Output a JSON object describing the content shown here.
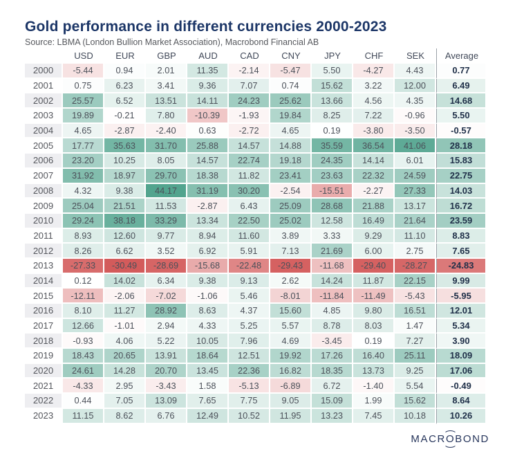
{
  "title": "Gold performance in different currencies 2000-2023",
  "source": "Source: LBMA (London Bullion Market Association), Macrobond Financial AB",
  "logo": {
    "pre": "MACR",
    "o": "O",
    "post": "BOND"
  },
  "brand_colors": {
    "title_navy": "#1c3667",
    "logo_navy": "#27365c",
    "year_stripe": "#eeeef1",
    "divider_gray": "#9aa0a7"
  },
  "chart_data": {
    "type": "heatmap",
    "title": "Gold performance in different currencies 2000-2023",
    "columns": [
      "USD",
      "EUR",
      "GBP",
      "AUD",
      "CAD",
      "CNY",
      "JPY",
      "CHF",
      "SEK"
    ],
    "average_label": "Average",
    "color_scale": {
      "positive_color": "#52a48e",
      "negative_color": "#d35b5b",
      "zero_color": "#ffffff",
      "positive_max": 44.17,
      "negative_max": -30.49
    },
    "rows": [
      {
        "year": "2000",
        "values": [
          -5.44,
          0.94,
          2.01,
          11.35,
          -2.14,
          -5.47,
          5.5,
          -4.27,
          4.43
        ],
        "average": 0.77
      },
      {
        "year": "2001",
        "values": [
          0.75,
          6.23,
          3.41,
          9.36,
          7.07,
          0.74,
          15.62,
          3.22,
          12.0
        ],
        "average": 6.49
      },
      {
        "year": "2002",
        "values": [
          25.57,
          6.52,
          13.51,
          14.11,
          24.23,
          25.62,
          13.66,
          4.56,
          4.35
        ],
        "average": 14.68
      },
      {
        "year": "2003",
        "values": [
          19.89,
          -0.21,
          7.8,
          -10.39,
          -1.93,
          19.84,
          8.25,
          7.22,
          -0.96
        ],
        "average": 5.5
      },
      {
        "year": "2004",
        "values": [
          4.65,
          -2.87,
          -2.4,
          0.63,
          -2.72,
          4.65,
          0.19,
          -3.8,
          -3.5
        ],
        "average": -0.57
      },
      {
        "year": "2005",
        "values": [
          17.77,
          35.63,
          31.7,
          25.88,
          14.57,
          14.88,
          35.59,
          36.54,
          41.06
        ],
        "average": 28.18
      },
      {
        "year": "2006",
        "values": [
          23.2,
          10.25,
          8.05,
          14.57,
          22.74,
          19.18,
          24.35,
          14.14,
          6.01
        ],
        "average": 15.83
      },
      {
        "year": "2007",
        "values": [
          31.92,
          18.97,
          29.7,
          18.38,
          11.82,
          23.41,
          23.63,
          22.32,
          24.59
        ],
        "average": 22.75
      },
      {
        "year": "2008",
        "values": [
          4.32,
          9.38,
          44.17,
          31.19,
          30.2,
          -2.54,
          -15.51,
          -2.27,
          27.33
        ],
        "average": 14.03
      },
      {
        "year": "2009",
        "values": [
          25.04,
          21.51,
          11.53,
          -2.87,
          6.43,
          25.09,
          28.68,
          21.88,
          13.17
        ],
        "average": 16.72
      },
      {
        "year": "2010",
        "values": [
          29.24,
          38.18,
          33.29,
          13.34,
          22.5,
          25.02,
          12.58,
          16.49,
          21.64
        ],
        "average": 23.59
      },
      {
        "year": "2011",
        "values": [
          8.93,
          12.6,
          9.77,
          8.94,
          11.6,
          3.89,
          3.33,
          9.29,
          11.1
        ],
        "average": 8.83
      },
      {
        "year": "2012",
        "values": [
          8.26,
          6.62,
          3.52,
          6.92,
          5.91,
          7.13,
          21.69,
          6.0,
          2.75
        ],
        "average": 7.65
      },
      {
        "year": "2013",
        "values": [
          -27.33,
          -30.49,
          -28.69,
          -15.68,
          -22.48,
          -29.43,
          -11.68,
          -29.4,
          -28.27
        ],
        "average": -24.83
      },
      {
        "year": "2014",
        "values": [
          0.12,
          14.02,
          6.34,
          9.38,
          9.13,
          2.62,
          14.24,
          11.87,
          22.15
        ],
        "average": 9.99
      },
      {
        "year": "2015",
        "values": [
          -12.11,
          -2.06,
          -7.02,
          -1.06,
          5.46,
          -8.01,
          -11.84,
          -11.49,
          -5.43
        ],
        "average": -5.95
      },
      {
        "year": "2016",
        "values": [
          8.1,
          11.27,
          28.92,
          8.63,
          4.37,
          15.6,
          4.85,
          9.8,
          16.51
        ],
        "average": 12.01
      },
      {
        "year": "2017",
        "values": [
          12.66,
          -1.01,
          2.94,
          4.33,
          5.25,
          5.57,
          8.78,
          8.03,
          1.47
        ],
        "average": 5.34
      },
      {
        "year": "2018",
        "values": [
          -0.93,
          4.06,
          5.22,
          10.05,
          7.96,
          4.69,
          -3.45,
          0.19,
          7.27
        ],
        "average": 3.9
      },
      {
        "year": "2019",
        "values": [
          18.43,
          20.65,
          13.91,
          18.64,
          12.51,
          19.92,
          17.26,
          16.4,
          25.11
        ],
        "average": 18.09
      },
      {
        "year": "2020",
        "values": [
          24.61,
          14.28,
          20.7,
          13.45,
          22.36,
          16.82,
          18.35,
          13.73,
          9.25
        ],
        "average": 17.06
      },
      {
        "year": "2021",
        "values": [
          -4.33,
          2.95,
          -3.43,
          1.58,
          -5.13,
          -6.89,
          6.72,
          -1.4,
          5.54
        ],
        "average": -0.49
      },
      {
        "year": "2022",
        "values": [
          0.44,
          7.05,
          13.09,
          7.65,
          7.75,
          9.05,
          15.09,
          1.99,
          15.62
        ],
        "average": 8.64
      },
      {
        "year": "2023",
        "values": [
          11.15,
          8.62,
          6.76,
          12.49,
          10.52,
          11.95,
          13.23,
          7.45,
          10.18
        ],
        "average": 10.26
      }
    ]
  }
}
